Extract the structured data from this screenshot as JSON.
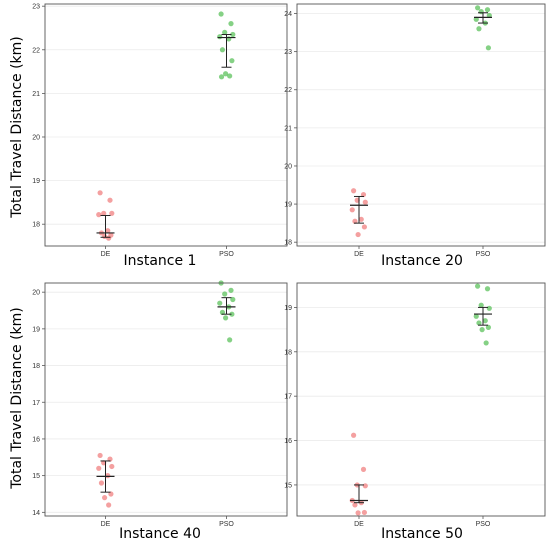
{
  "figure": {
    "ylabel_top": "Total Travel Distance (km)",
    "ylabel_bottom": "Total Travel Distance (km)"
  },
  "colors": {
    "DE": "#f08080",
    "PSO": "#5cc15c",
    "errorbar": "#222222",
    "grid": "#ebebeb",
    "frame": "#555555"
  },
  "chart_data": [
    {
      "type": "scatter",
      "title": "Instance 1",
      "categories": [
        "DE",
        "PSO"
      ],
      "ylim": [
        17.5,
        23.05
      ],
      "yticks": [
        18,
        19,
        20,
        21,
        22,
        23
      ],
      "series": [
        {
          "name": "DE",
          "values": [
            18.72,
            18.55,
            18.25,
            18.25,
            18.22,
            17.85,
            17.8,
            17.75,
            17.72,
            17.68
          ],
          "mean": 17.8,
          "error_low": 17.7,
          "error_high": 18.2
        },
        {
          "name": "PSO",
          "values": [
            22.82,
            22.6,
            22.4,
            22.35,
            22.3,
            22.25,
            22.0,
            21.75,
            21.45,
            21.4,
            21.38
          ],
          "mean": 22.28,
          "error_low": 21.6,
          "error_high": 22.35
        }
      ]
    },
    {
      "type": "scatter",
      "title": "Instance 20",
      "categories": [
        "DE",
        "PSO"
      ],
      "ylim": [
        17.9,
        24.25
      ],
      "yticks": [
        18,
        19,
        20,
        21,
        22,
        23,
        24
      ],
      "series": [
        {
          "name": "DE",
          "values": [
            19.35,
            19.25,
            19.1,
            19.05,
            18.85,
            18.6,
            18.55,
            18.4,
            18.2
          ],
          "mean": 18.97,
          "error_low": 18.5,
          "error_high": 19.2
        },
        {
          "name": "PSO",
          "values": [
            24.15,
            24.1,
            24.05,
            23.95,
            23.85,
            23.75,
            23.6,
            23.1
          ],
          "mean": 23.9,
          "error_low": 23.75,
          "error_high": 24.02
        }
      ]
    },
    {
      "type": "scatter",
      "title": "Instance 40",
      "categories": [
        "DE",
        "PSO"
      ],
      "ylim": [
        13.9,
        20.25
      ],
      "yticks": [
        14,
        15,
        16,
        17,
        18,
        19,
        20
      ],
      "series": [
        {
          "name": "DE",
          "values": [
            15.55,
            15.45,
            15.35,
            15.25,
            15.2,
            15.0,
            14.8,
            14.5,
            14.4,
            14.2
          ],
          "mean": 14.98,
          "error_low": 14.55,
          "error_high": 15.4
        },
        {
          "name": "PSO",
          "values": [
            20.25,
            20.05,
            19.95,
            19.8,
            19.7,
            19.6,
            19.45,
            19.4,
            19.3,
            18.7
          ],
          "mean": 19.6,
          "error_low": 19.4,
          "error_high": 19.85
        }
      ]
    },
    {
      "type": "scatter",
      "title": "Instance 50",
      "categories": [
        "DE",
        "PSO"
      ],
      "ylim": [
        14.3,
        19.55
      ],
      "yticks": [
        15,
        16,
        17,
        18,
        19
      ],
      "series": [
        {
          "name": "DE",
          "values": [
            16.12,
            15.35,
            15.0,
            14.98,
            14.65,
            14.6,
            14.55,
            14.38,
            14.37
          ],
          "mean": 14.65,
          "error_low": 14.6,
          "error_high": 15.0
        },
        {
          "name": "PSO",
          "values": [
            19.48,
            19.42,
            19.05,
            18.98,
            18.8,
            18.7,
            18.65,
            18.55,
            18.5,
            18.2
          ],
          "mean": 18.85,
          "error_low": 18.6,
          "error_high": 19.0
        }
      ]
    }
  ]
}
